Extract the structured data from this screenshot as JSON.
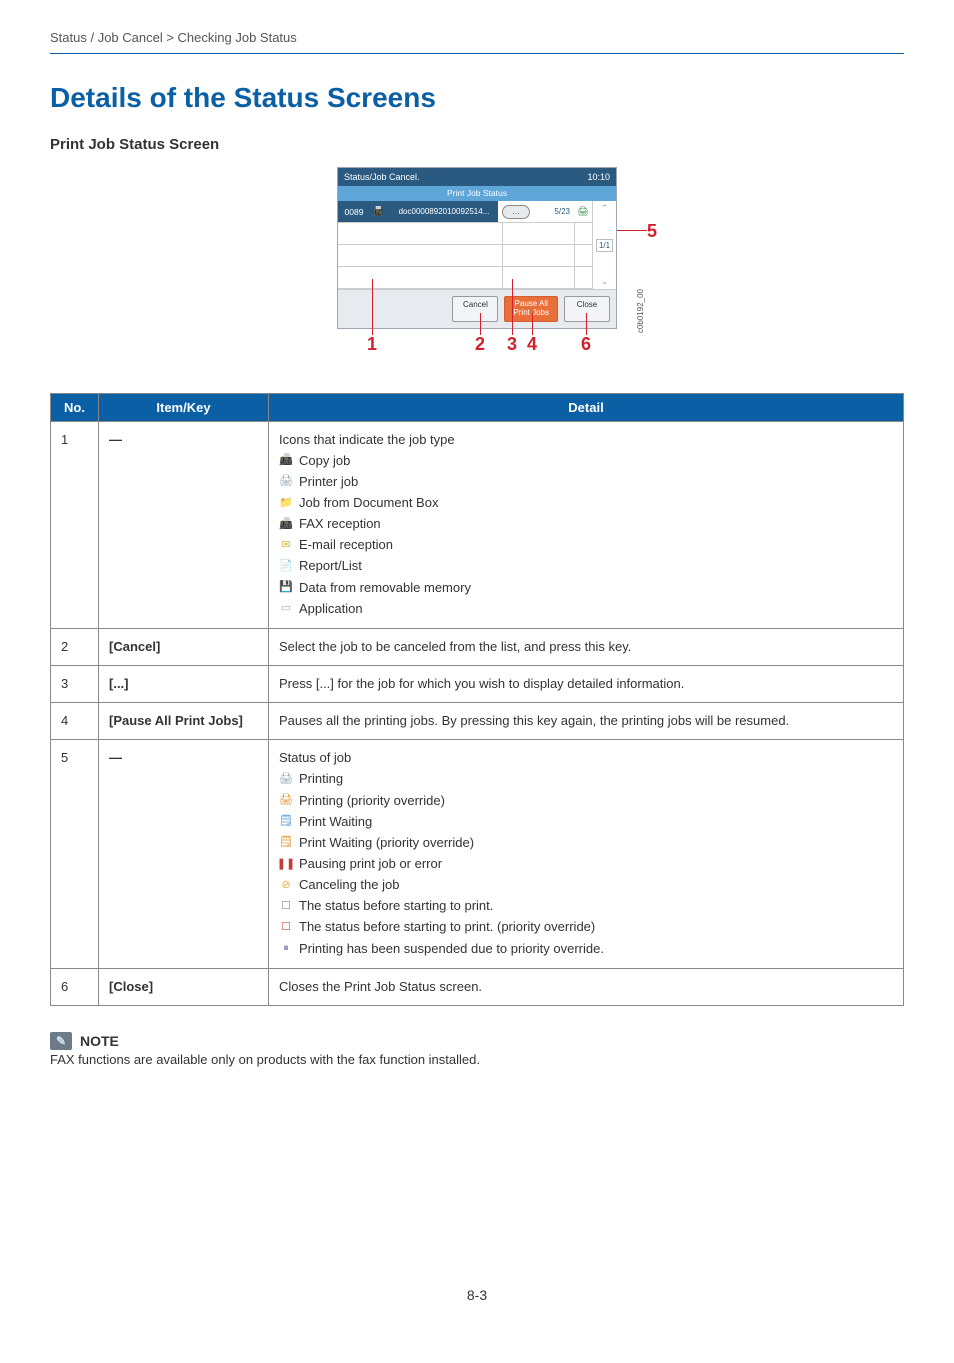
{
  "breadcrumb": "Status / Job Cancel > Checking Job Status",
  "title": "Details of the Status Screens",
  "subtitle": "Print Job Status Screen",
  "screenshot": {
    "header_title": "Status/Job Cancel.",
    "header_time": "10:10",
    "subheader": "Print Job Status",
    "job_no": "0089",
    "job_name": "doc0000892010092514...",
    "job_ellipsis": "…",
    "job_pages": "5/23",
    "scroll_up": "⌃",
    "scroll_page": "1/1",
    "scroll_down": "⌄",
    "btn_cancel": "Cancel",
    "btn_pause": "Pause All\nPrint Jobs",
    "btn_close": "Close",
    "side_code": "c0b0192_00",
    "callouts": {
      "c1": "1",
      "c2": "2",
      "c3": "3",
      "c4": "4",
      "c5": "5",
      "c6": "6"
    }
  },
  "table": {
    "head_no": "No.",
    "head_item": "Item/Key",
    "head_detail": "Detail",
    "rows": [
      {
        "no": "1",
        "item": "―",
        "detail_intro": "Icons that indicate the job type",
        "icons": [
          {
            "glyph": "📠",
            "color": "#4b6f8f",
            "label": "Copy job"
          },
          {
            "glyph": "🖨",
            "color": "#8aa0b0",
            "label": "Printer job"
          },
          {
            "glyph": "📁",
            "color": "#d8a23c",
            "label": "Job from Document Box"
          },
          {
            "glyph": "📠",
            "color": "#8aa0b0",
            "label": "FAX reception"
          },
          {
            "glyph": "✉",
            "color": "#e0b040",
            "label": "E-mail reception"
          },
          {
            "glyph": "📄",
            "color": "#5b8cc2",
            "label": "Report/List"
          },
          {
            "glyph": "💾",
            "color": "#6aa05a",
            "label": "Data from removable memory"
          },
          {
            "glyph": "▭",
            "color": "#9bb1c2",
            "label": "Application"
          }
        ]
      },
      {
        "no": "2",
        "item": "[Cancel]",
        "detail": "Select the job to be canceled from the list, and press this key."
      },
      {
        "no": "3",
        "item": "[...]",
        "detail": "Press [...] for the job for which you wish to display detailed information."
      },
      {
        "no": "4",
        "item": "[Pause All Print Jobs]",
        "detail": "Pauses all the printing jobs. By pressing this key again, the printing jobs will be resumed."
      },
      {
        "no": "5",
        "item": "―",
        "detail_intro": "Status of job",
        "icons": [
          {
            "glyph": "🖨",
            "color": "#8aa0b0",
            "label": "Printing"
          },
          {
            "glyph": "🖨",
            "color": "#d88a2a",
            "label": "Printing (priority override)"
          },
          {
            "glyph": "🗒",
            "color": "#4a8fcf",
            "label": "Print Waiting"
          },
          {
            "glyph": "🗒",
            "color": "#d88a2a",
            "label": "Print Waiting (priority override)"
          },
          {
            "glyph": "❚❚",
            "color": "#c23a3a",
            "label": "Pausing print job or error"
          },
          {
            "glyph": "⊘",
            "color": "#e0b040",
            "label": "Canceling the job"
          },
          {
            "glyph": "☐",
            "color": "#7a8fa5",
            "label": "The status before starting to print."
          },
          {
            "glyph": "☐",
            "color": "#d1544a",
            "label": "The status before starting to print. (priority override)"
          },
          {
            "glyph": "⏸",
            "color": "#7a6fa5",
            "label": "Printing has been suspended due to priority override."
          }
        ]
      },
      {
        "no": "6",
        "item": "[Close]",
        "detail": "Closes the Print Job Status screen."
      }
    ]
  },
  "note": {
    "heading": "NOTE",
    "text": "FAX functions are available only on products with the fax function installed."
  },
  "page_number": "8-3"
}
